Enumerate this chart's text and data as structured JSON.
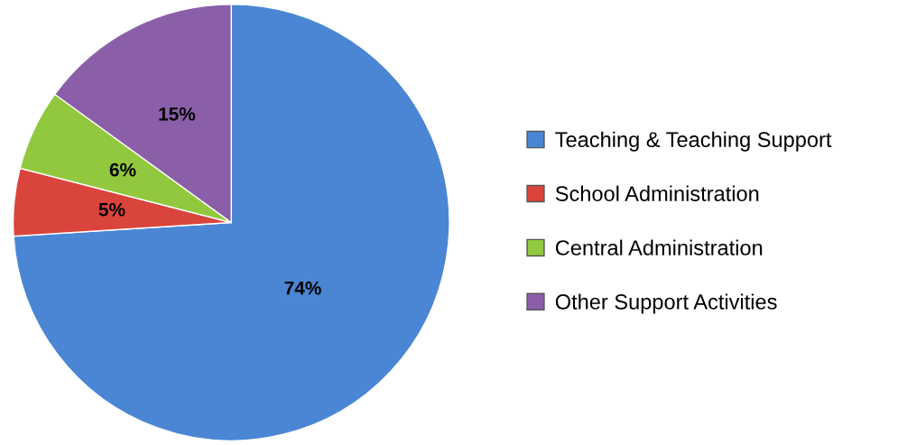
{
  "chart_data": {
    "type": "pie",
    "categories": [
      "Teaching & Teaching Support",
      "School Administration",
      "Central Administration",
      "Other Support Activities"
    ],
    "values": [
      74,
      5,
      6,
      15
    ],
    "value_labels": [
      "74%",
      "5%",
      "6%",
      "15%"
    ],
    "colors": [
      "#4a86d4",
      "#d9453c",
      "#92c83e",
      "#8a5fa8"
    ],
    "legend": "right"
  }
}
